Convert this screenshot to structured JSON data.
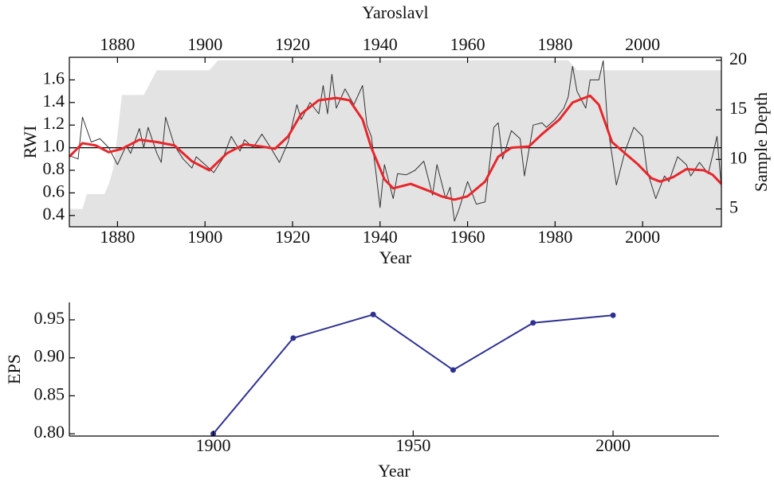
{
  "chart_data": [
    {
      "type": "line",
      "title": "Yaroslavl",
      "xlabel": "Year",
      "ylabel": "RWI",
      "y2label": "Sample Depth",
      "xlim": [
        1869,
        2018
      ],
      "xticks": [
        1880,
        1900,
        1920,
        1940,
        1960,
        1980,
        2000
      ],
      "ylim": [
        0.3,
        1.8
      ],
      "yticks": [
        0.4,
        0.6,
        0.8,
        {
          "value": 1,
          "label": "1.0"
        },
        1.2,
        1.4,
        1.6
      ],
      "y2lim": [
        3.2,
        20.3
      ],
      "y2ticks": [
        5,
        10,
        15,
        20
      ],
      "hline": 1,
      "frame": true,
      "mirror_x": true,
      "series": [
        {
          "axis": "y2",
          "style": "area",
          "color": "#e3e3e3",
          "x": [
            1869,
            1872,
            1873,
            1877,
            1878,
            1879,
            1880,
            1881,
            1886,
            1889,
            1901,
            1903,
            1983,
            1985,
            2018
          ],
          "values": [
            5,
            5,
            6.5,
            6.5,
            7.5,
            9,
            12.5,
            16.5,
            16.5,
            19,
            19,
            20,
            20,
            19,
            19
          ]
        },
        {
          "style": "line",
          "color": "#333333",
          "width": 1,
          "x": [
            1869,
            1871,
            1872,
            1874,
            1876,
            1878,
            1880,
            1882,
            1883,
            1885,
            1886,
            1887,
            1889,
            1890,
            1891,
            1893,
            1895,
            1897,
            1898,
            1900,
            1902,
            1904,
            1906,
            1908,
            1909,
            1911,
            1913,
            1915,
            1917,
            1919,
            1921,
            1922,
            1924,
            1926,
            1927,
            1928,
            1929,
            1930,
            1932,
            1934,
            1936,
            1937,
            1938,
            1939,
            1940,
            1941,
            1943,
            1944,
            1946,
            1948,
            1950,
            1952,
            1953,
            1955,
            1956,
            1957,
            1958,
            1960,
            1962,
            1964,
            1966,
            1967,
            1968,
            1970,
            1972,
            1973,
            1975,
            1977,
            1978,
            1980,
            1982,
            1983,
            1984,
            1985,
            1987,
            1988,
            1990,
            1991,
            1992,
            1994,
            1996,
            1998,
            2000,
            2001,
            2003,
            2005,
            2006,
            2008,
            2010,
            2011,
            2013,
            2015,
            2017,
            2018
          ],
          "values": [
            0.93,
            0.9,
            1.27,
            1.05,
            1.08,
            1.0,
            0.85,
            1.02,
            0.95,
            1.17,
            1.0,
            1.18,
            0.95,
            0.87,
            1.27,
            1.02,
            0.9,
            0.82,
            0.92,
            0.85,
            0.78,
            0.9,
            1.1,
            0.97,
            1.07,
            1.0,
            1.12,
            1.0,
            0.87,
            1.05,
            1.38,
            1.25,
            1.4,
            1.3,
            1.55,
            1.3,
            1.65,
            1.35,
            1.52,
            1.38,
            1.55,
            1.2,
            1.1,
            0.8,
            0.47,
            0.85,
            0.55,
            0.77,
            0.76,
            0.8,
            0.88,
            0.58,
            0.85,
            0.55,
            0.65,
            0.35,
            0.45,
            0.7,
            0.5,
            0.52,
            1.18,
            1.22,
            0.9,
            1.15,
            1.08,
            0.75,
            1.2,
            1.22,
            1.18,
            1.25,
            1.35,
            1.45,
            1.72,
            1.5,
            1.35,
            1.6,
            1.6,
            1.77,
            1.2,
            0.67,
            0.97,
            1.18,
            1.1,
            0.8,
            0.55,
            0.75,
            0.7,
            0.92,
            0.85,
            0.75,
            0.87,
            0.77,
            1.1,
            0.65
          ]
        },
        {
          "style": "line",
          "color": "#e8262b",
          "width": 3,
          "x": [
            1869,
            1872,
            1875,
            1878,
            1881,
            1885,
            1889,
            1893,
            1897,
            1901,
            1905,
            1909,
            1913,
            1916,
            1919,
            1922,
            1926,
            1930,
            1933,
            1936,
            1938,
            1941,
            1943,
            1947,
            1951,
            1954,
            1957,
            1960,
            1964,
            1967,
            1970,
            1974,
            1977,
            1981,
            1984,
            1988,
            1990,
            1993,
            1996,
            1999,
            2002,
            2004,
            2007,
            2010,
            2014,
            2016,
            2018
          ],
          "values": [
            0.92,
            1.04,
            1.02,
            0.96,
            0.99,
            1.07,
            1.05,
            1.02,
            0.88,
            0.8,
            0.95,
            1.03,
            1.01,
            0.99,
            1.1,
            1.3,
            1.42,
            1.44,
            1.42,
            1.25,
            1.0,
            0.72,
            0.64,
            0.68,
            0.62,
            0.57,
            0.54,
            0.57,
            0.7,
            0.92,
            1.0,
            1.01,
            1.12,
            1.25,
            1.4,
            1.46,
            1.38,
            1.05,
            0.95,
            0.85,
            0.73,
            0.7,
            0.74,
            0.81,
            0.8,
            0.76,
            0.68
          ]
        }
      ]
    },
    {
      "type": "line",
      "xlabel": "Year",
      "ylabel": "EPS",
      "xlim": [
        1864,
        2026.5
      ],
      "xticks": [
        1900,
        1950,
        2000
      ],
      "ylim": [
        0.797,
        0.973
      ],
      "yticks": [
        {
          "value": 0.8,
          "label": "0.80"
        },
        0.85,
        {
          "value": 0.9,
          "label": "0.90"
        },
        0.95
      ],
      "frame": false,
      "series": [
        {
          "style": "line",
          "color": "#2e3192",
          "width": 2,
          "markers": true,
          "x": [
            1900,
            1920,
            1940,
            1960,
            1980,
            2000
          ],
          "values": [
            0.8,
            0.926,
            0.957,
            0.884,
            0.946,
            0.956
          ]
        }
      ]
    }
  ]
}
